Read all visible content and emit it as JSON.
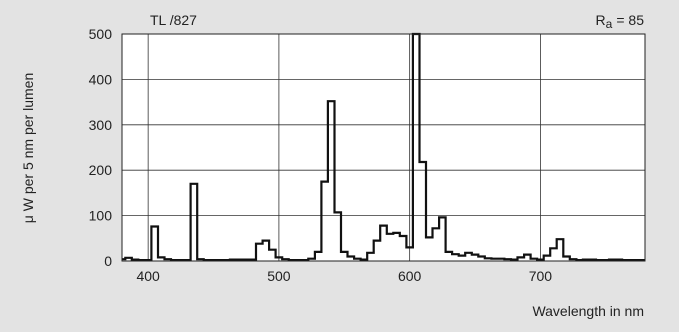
{
  "chart_data": {
    "type": "line",
    "title": "TL /827",
    "annotation_prefix": "R",
    "annotation_sub": "a",
    "annotation_value": "= 85",
    "xlabel": "Wavelength in nm",
    "ylabel": "μ W per 5 nm per lumen",
    "xlim": [
      380,
      780
    ],
    "ylim": [
      0,
      500
    ],
    "xticks": [
      400,
      500,
      600,
      700
    ],
    "xtick_labels": [
      "400",
      "500",
      "600",
      "700"
    ],
    "yticks": [
      0,
      100,
      200,
      300,
      400,
      500
    ],
    "ytick_labels": [
      "0",
      "100",
      "200",
      "300",
      "400",
      "500"
    ],
    "grid": true,
    "line_color": "#111111",
    "series": [
      {
        "name": "",
        "x": [
          380,
          385,
          390,
          395,
          400,
          405,
          410,
          415,
          420,
          425,
          430,
          435,
          440,
          445,
          450,
          455,
          460,
          465,
          470,
          475,
          480,
          485,
          490,
          495,
          500,
          505,
          510,
          515,
          520,
          525,
          530,
          535,
          540,
          545,
          550,
          555,
          560,
          565,
          570,
          575,
          580,
          585,
          590,
          595,
          600,
          605,
          610,
          615,
          620,
          625,
          630,
          635,
          640,
          645,
          650,
          655,
          660,
          665,
          670,
          675,
          680,
          685,
          690,
          695,
          700,
          705,
          710,
          715,
          720,
          725,
          730,
          735,
          740,
          745,
          750,
          755,
          760,
          765,
          770,
          775,
          780
        ],
        "values": [
          4,
          7,
          3,
          2,
          2,
          76,
          8,
          4,
          2,
          2,
          2,
          170,
          4,
          2,
          2,
          2,
          2,
          3,
          3,
          3,
          3,
          38,
          45,
          25,
          8,
          4,
          2,
          2,
          2,
          5,
          20,
          175,
          352,
          107,
          20,
          10,
          5,
          3,
          18,
          45,
          78,
          60,
          62,
          55,
          30,
          500,
          218,
          52,
          72,
          96,
          20,
          15,
          12,
          18,
          14,
          10,
          6,
          5,
          5,
          4,
          3,
          8,
          14,
          5,
          3,
          12,
          28,
          48,
          10,
          4,
          2,
          3,
          3,
          2,
          2,
          3,
          3,
          2,
          2,
          2,
          2
        ]
      }
    ]
  }
}
